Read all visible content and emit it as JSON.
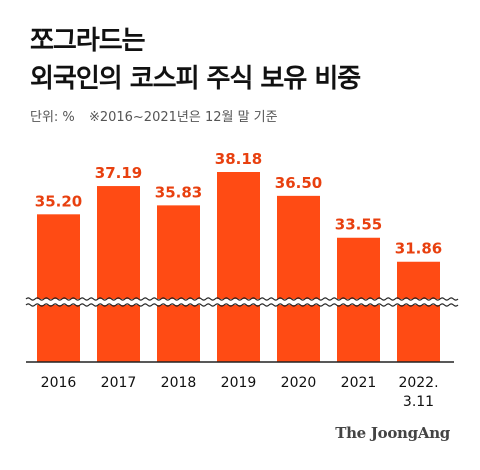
{
  "header": {
    "title_line1": "쪼그라드는",
    "title_line2": "외국인의 코스피 주식 보유 비중"
  },
  "note": {
    "unit": "단위: %",
    "remark": "※2016~2021년은 12월 말 기준"
  },
  "brand": "The JoongAng",
  "colors": {
    "bar": "#FF4B14",
    "value_label": "#E8400F",
    "axis": "#222222"
  },
  "chart_data": {
    "type": "bar",
    "categories": [
      "2016",
      "2017",
      "2018",
      "2019",
      "2020",
      "2021",
      "2022.\n3.11"
    ],
    "values": [
      35.2,
      37.19,
      35.83,
      38.18,
      36.5,
      33.55,
      31.86
    ],
    "value_labels": [
      "35.20",
      "37.19",
      "35.83",
      "38.18",
      "36.50",
      "33.55",
      "31.86"
    ],
    "axis_break": true,
    "grid": false,
    "legend": "none"
  }
}
